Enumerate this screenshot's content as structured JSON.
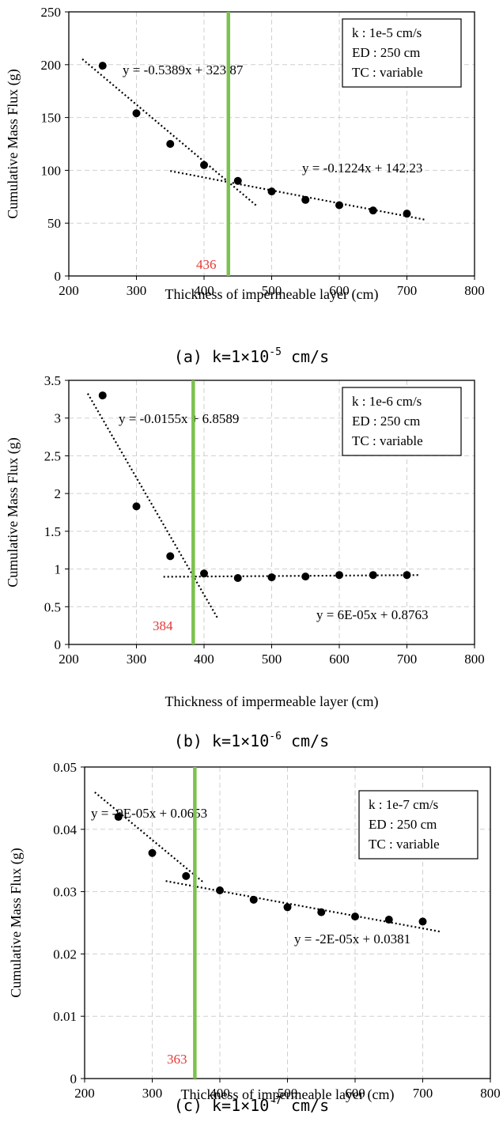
{
  "chart_data": [
    {
      "type": "scatter",
      "caption_prefix": "(a) k=1×10",
      "caption_exp": "-5",
      "caption_suffix": " cm/s",
      "xlabel": "Thickness of impermeable layer (cm)",
      "ylabel": "Cumulative Mass Flux (g)",
      "xlim": [
        200,
        800
      ],
      "ylim": [
        0,
        250
      ],
      "xticks": [
        200,
        300,
        400,
        500,
        600,
        700,
        800
      ],
      "yticks": [
        0,
        50,
        100,
        150,
        200,
        250
      ],
      "ytick_labels": [
        "0",
        "50",
        "100",
        "150",
        "200",
        "250"
      ],
      "x": [
        250,
        300,
        350,
        400,
        450,
        500,
        550,
        600,
        650,
        700
      ],
      "y": [
        199,
        154,
        125,
        105,
        90,
        80,
        72,
        67,
        62,
        59
      ],
      "trendlines": [
        {
          "label": "y = -0.5389x + 323.87",
          "slope": -0.5389,
          "intercept": 323.87,
          "x_range": [
            220,
            478
          ]
        },
        {
          "label": "y = -0.1224x + 142.23",
          "slope": -0.1224,
          "intercept": 142.23,
          "x_range": [
            350,
            728
          ]
        }
      ],
      "vline": {
        "x": 436,
        "label": "436",
        "color": "#7cc24e"
      },
      "legend": [
        "k : 1e-5 cm/s",
        "ED : 250 cm",
        "TC : variable"
      ]
    },
    {
      "type": "scatter",
      "caption_prefix": "(b) k=1×10",
      "caption_exp": "-6",
      "caption_suffix": " cm/s",
      "xlabel": "Thickness of impermeable layer (cm)",
      "ylabel": "Cumulative Mass Flux (g)",
      "xlim": [
        200,
        800
      ],
      "ylim": [
        0,
        3.5
      ],
      "xticks": [
        200,
        300,
        400,
        500,
        600,
        700,
        800
      ],
      "yticks": [
        0,
        0.5,
        1,
        1.5,
        2,
        2.5,
        3,
        3.5
      ],
      "ytick_labels": [
        "0",
        "0.5",
        "1",
        "1.5",
        "2",
        "2.5",
        "3",
        "3.5"
      ],
      "x": [
        250,
        300,
        350,
        400,
        450,
        500,
        550,
        600,
        650,
        700
      ],
      "y": [
        3.3,
        1.83,
        1.17,
        0.94,
        0.88,
        0.89,
        0.9,
        0.92,
        0.92,
        0.92
      ],
      "trendlines": [
        {
          "label": "y = -0.0155x + 6.8589",
          "slope": -0.0155,
          "intercept": 6.8589,
          "x_range": [
            228,
            420
          ]
        },
        {
          "label": "y = 6E-05x + 0.8763",
          "slope": 6e-05,
          "intercept": 0.8763,
          "x_range": [
            340,
            718
          ]
        }
      ],
      "vline": {
        "x": 384,
        "label": "384",
        "color": "#7cc24e"
      },
      "legend": [
        "k : 1e-6 cm/s",
        "ED : 250 cm",
        "TC : variable"
      ]
    },
    {
      "type": "scatter",
      "caption_prefix": "(c) k=1×10",
      "caption_exp": "-7",
      "caption_suffix": " cm/s",
      "xlabel": "Thickness of impermeable layer (cm)",
      "ylabel": "Cumulative Mass Flux (g)",
      "xlim": [
        200,
        800
      ],
      "ylim": [
        0,
        0.05
      ],
      "xticks": [
        200,
        300,
        400,
        500,
        600,
        700,
        800
      ],
      "yticks": [
        0,
        0.01,
        0.02,
        0.03,
        0.04,
        0.05
      ],
      "ytick_labels": [
        "0",
        "0.01",
        "0.02",
        "0.03",
        "0.04",
        "0.05"
      ],
      "x": [
        250,
        300,
        350,
        400,
        450,
        500,
        550,
        600,
        650,
        700
      ],
      "y": [
        0.042,
        0.0362,
        0.0325,
        0.0302,
        0.0287,
        0.0275,
        0.0267,
        0.026,
        0.0255,
        0.0252
      ],
      "trendlines": [
        {
          "label": "y = -9E-05x + 0.0653",
          "slope": -9e-05,
          "intercept": 0.0653,
          "x_range": [
            215,
            375
          ]
        },
        {
          "label": "y = -2E-05x + 0.0381",
          "slope": -2e-05,
          "intercept": 0.0381,
          "x_range": [
            320,
            728
          ]
        }
      ],
      "vline": {
        "x": 363,
        "label": "363",
        "color": "#7cc24e"
      },
      "legend": [
        "k : 1e-7 cm/s",
        "ED : 250 cm",
        "TC : variable"
      ]
    }
  ]
}
